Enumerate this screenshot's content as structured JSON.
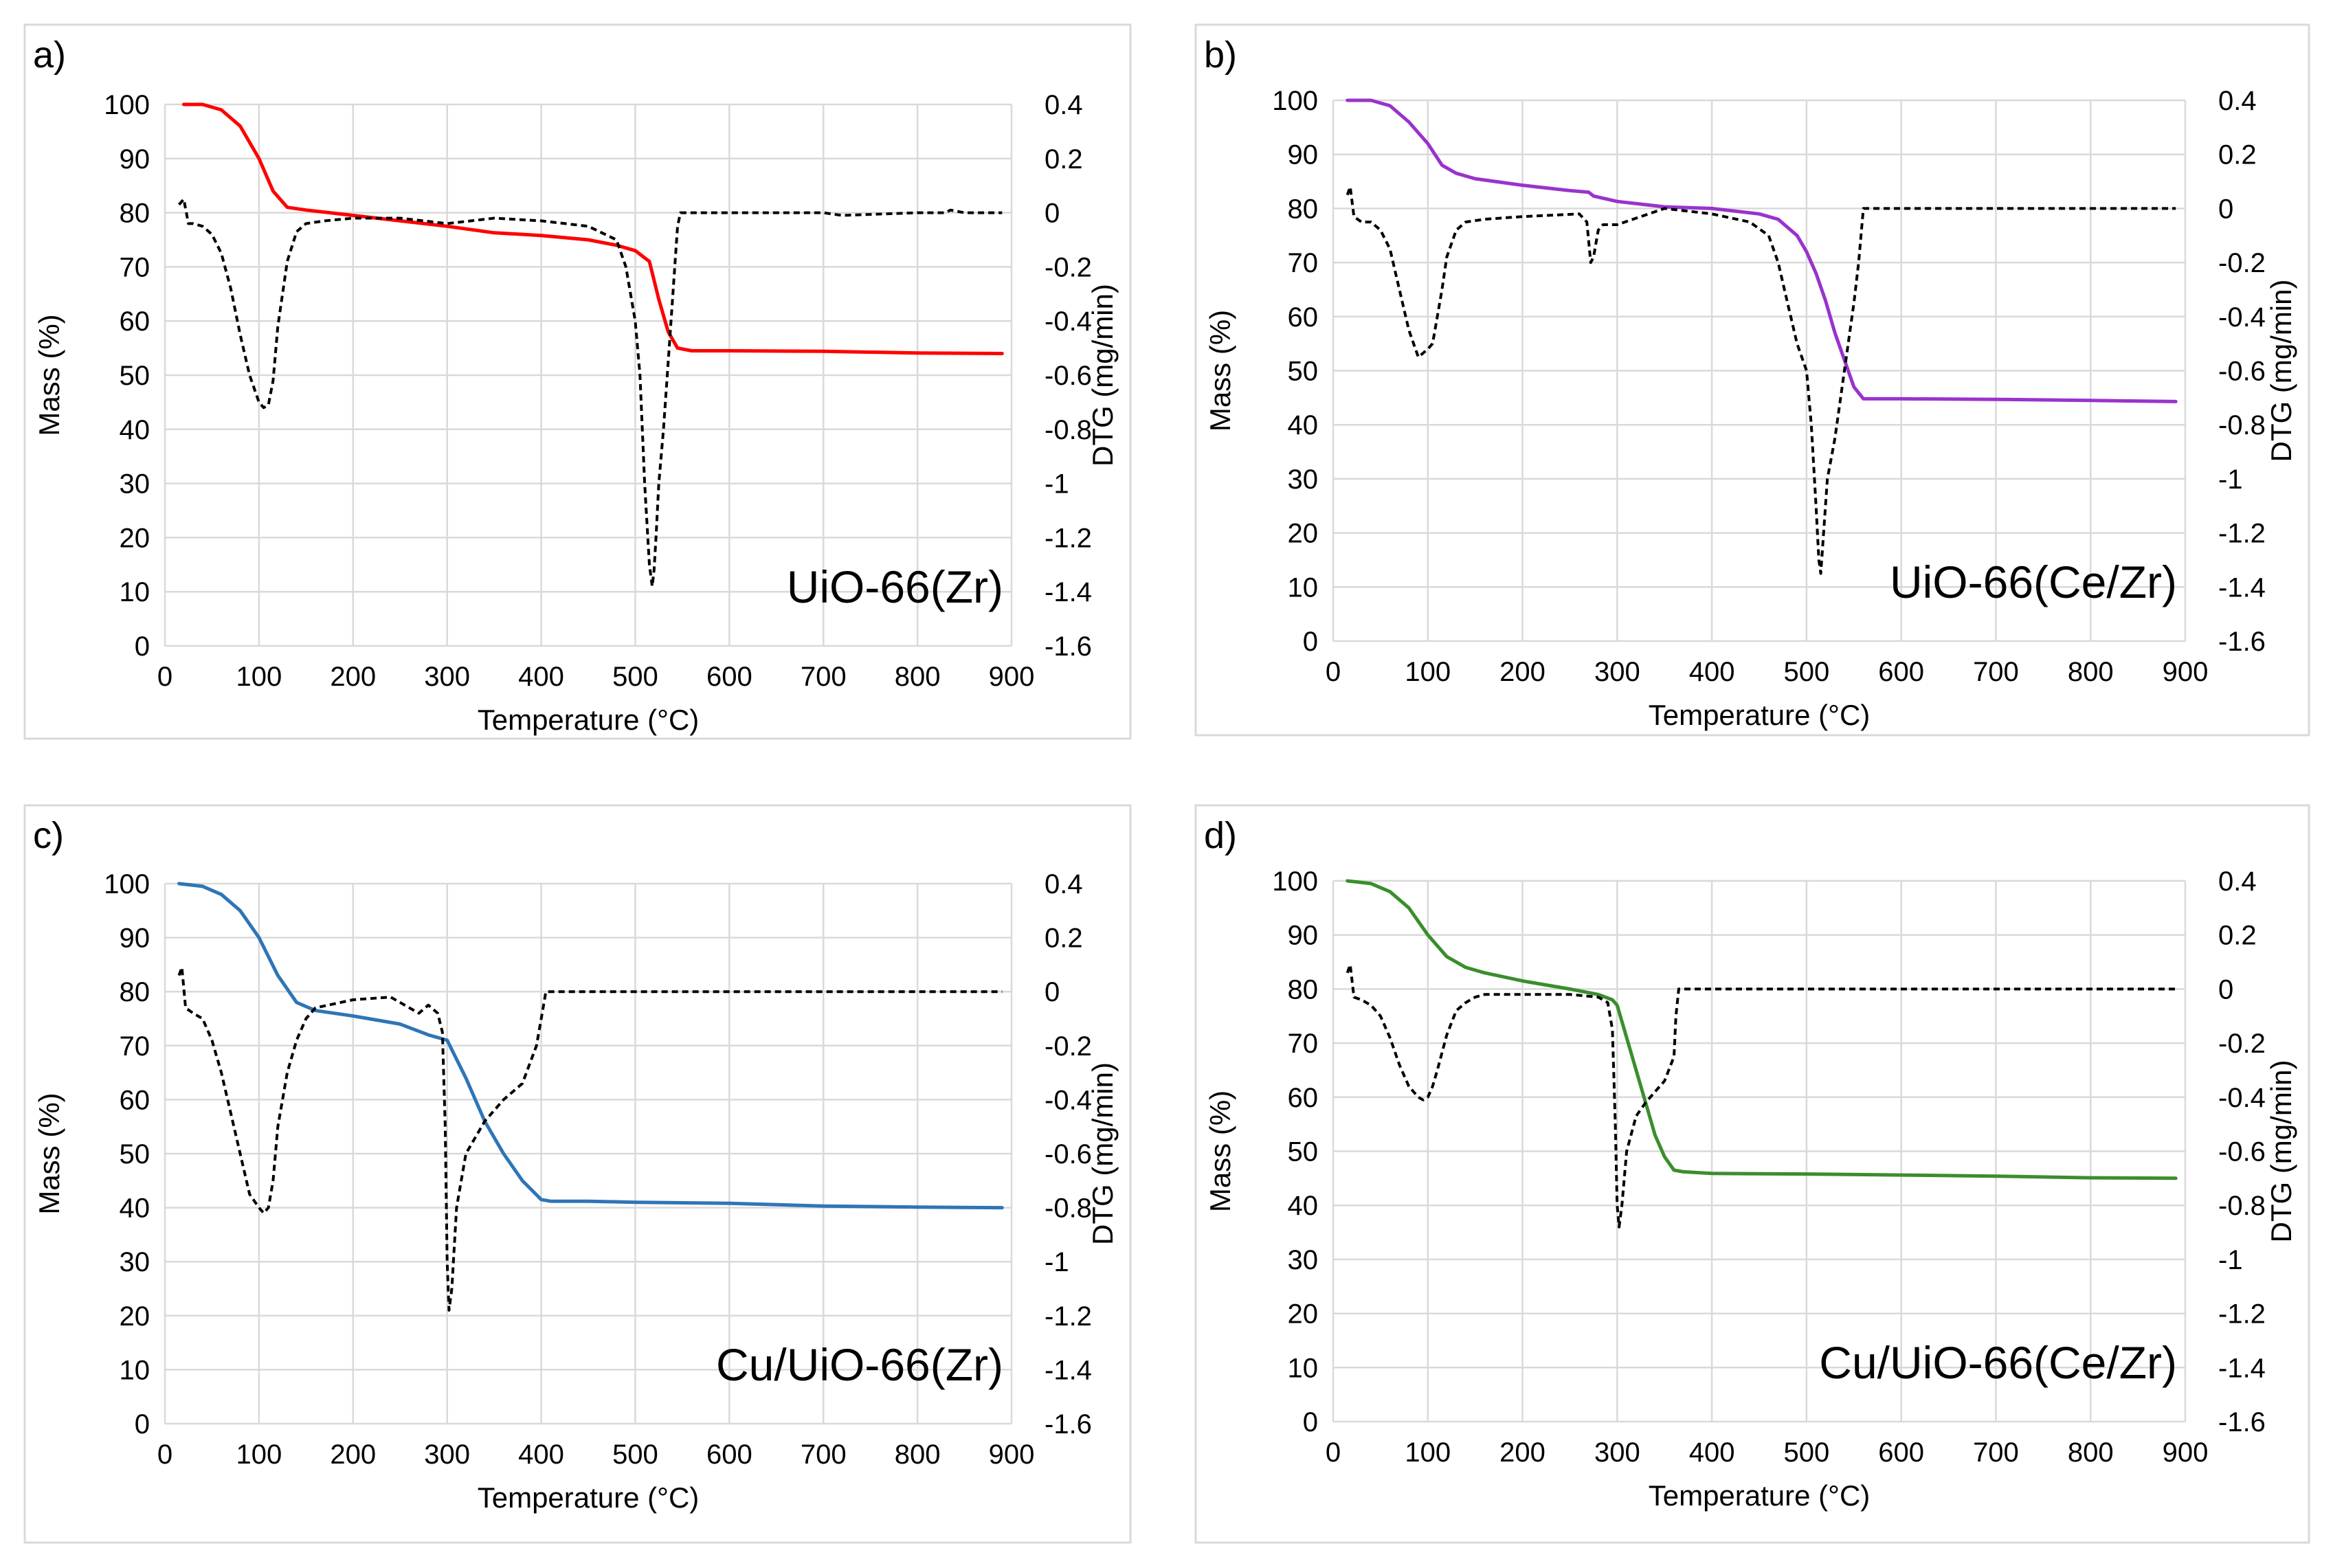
{
  "chart_data": [
    {
      "type": "line",
      "panel_label": "a)",
      "sample": "UiO-66(Zr)",
      "xlabel": "Temperature (°C)",
      "ylabel": "Mass (%)",
      "y2label": "DTG (mg/min)",
      "xlim": [
        0,
        900
      ],
      "ylim": [
        0,
        100
      ],
      "y2lim": [
        -1.6,
        0.4
      ],
      "xticks": [
        "0",
        "100",
        "200",
        "300",
        "400",
        "500",
        "600",
        "700",
        "800",
        "900"
      ],
      "yticks": [
        "0",
        "10",
        "20",
        "30",
        "40",
        "50",
        "60",
        "70",
        "80",
        "90",
        "100"
      ],
      "y2ticks": [
        "-1.6",
        "-1.4",
        "-1.2",
        "-1",
        "-0.8",
        "-0.6",
        "-0.4",
        "-0.2",
        "0",
        "0.2",
        "0.4"
      ],
      "colors": {
        "mass": "#ff0000",
        "dtg": "#000000"
      },
      "series": [
        {
          "name": "Mass",
          "axis": "left",
          "x": [
            20,
            40,
            60,
            80,
            100,
            115,
            130,
            150,
            200,
            250,
            300,
            350,
            400,
            450,
            480,
            500,
            515,
            525,
            535,
            545,
            560,
            600,
            700,
            800,
            890
          ],
          "y": [
            100,
            100,
            99,
            96,
            90,
            84,
            81,
            80.5,
            79.5,
            78.5,
            77.5,
            76.3,
            75.8,
            75,
            74,
            73,
            71,
            64,
            58,
            55,
            54.5,
            54.5,
            54.4,
            54.1,
            54
          ]
        },
        {
          "name": "DTG",
          "axis": "right",
          "x": [
            15,
            20,
            25,
            30,
            40,
            50,
            60,
            70,
            80,
            90,
            100,
            105,
            110,
            115,
            120,
            130,
            140,
            150,
            170,
            200,
            250,
            300,
            350,
            400,
            450,
            480,
            490,
            500,
            505,
            510,
            515,
            518,
            520,
            522,
            525,
            530,
            535,
            540,
            545,
            548,
            600,
            700,
            720,
            800,
            830,
            835,
            850,
            890
          ],
          "y": [
            0.03,
            0.05,
            -0.04,
            -0.04,
            -0.05,
            -0.08,
            -0.15,
            -0.28,
            -0.45,
            -0.6,
            -0.7,
            -0.72,
            -0.71,
            -0.62,
            -0.42,
            -0.18,
            -0.07,
            -0.04,
            -0.03,
            -0.02,
            -0.02,
            -0.04,
            -0.02,
            -0.03,
            -0.05,
            -0.1,
            -0.2,
            -0.4,
            -0.6,
            -1.0,
            -1.3,
            -1.38,
            -1.32,
            -1.2,
            -1.0,
            -0.8,
            -0.55,
            -0.3,
            -0.05,
            0,
            0,
            0,
            -0.01,
            0,
            0,
            0.01,
            0,
            0
          ]
        }
      ]
    },
    {
      "type": "line",
      "panel_label": "b)",
      "sample": "UiO-66(Ce/Zr)",
      "xlabel": "Temperature (°C)",
      "ylabel": "Mass (%)",
      "y2label": "DTG (mg/min)",
      "xlim": [
        0,
        900
      ],
      "ylim": [
        0,
        100
      ],
      "y2lim": [
        -1.6,
        0.4
      ],
      "xticks": [
        "0",
        "100",
        "200",
        "300",
        "400",
        "500",
        "600",
        "700",
        "800",
        "900"
      ],
      "yticks": [
        "0",
        "10",
        "20",
        "30",
        "40",
        "50",
        "60",
        "70",
        "80",
        "90",
        "100"
      ],
      "y2ticks": [
        "-1.6",
        "-1.4",
        "-1.2",
        "-1",
        "-0.8",
        "-0.6",
        "-0.4",
        "-0.2",
        "0",
        "0.2",
        "0.4"
      ],
      "colors": {
        "mass": "#9933cc",
        "dtg": "#000000"
      },
      "series": [
        {
          "name": "Mass",
          "axis": "left",
          "x": [
            15,
            40,
            60,
            80,
            100,
            115,
            130,
            150,
            200,
            250,
            270,
            275,
            300,
            350,
            400,
            450,
            470,
            490,
            500,
            510,
            520,
            530,
            540,
            550,
            560,
            600,
            700,
            800,
            890
          ],
          "y": [
            100,
            100,
            99,
            96,
            92,
            88,
            86.5,
            85.5,
            84.3,
            83.3,
            83,
            82.3,
            81.3,
            80.3,
            80,
            79,
            78,
            75,
            72,
            68,
            63,
            57,
            52,
            47,
            44.8,
            44.8,
            44.7,
            44.5,
            44.3
          ]
        },
        {
          "name": "DTG",
          "axis": "right",
          "x": [
            15,
            18,
            22,
            30,
            40,
            50,
            60,
            70,
            80,
            90,
            100,
            105,
            110,
            115,
            120,
            130,
            140,
            160,
            200,
            260,
            268,
            272,
            275,
            280,
            285,
            300,
            350,
            400,
            440,
            460,
            470,
            480,
            490,
            500,
            505,
            510,
            513,
            515,
            518,
            522,
            530,
            540,
            550,
            555,
            560,
            600,
            700,
            800,
            890
          ],
          "y": [
            0.05,
            0.08,
            -0.03,
            -0.05,
            -0.05,
            -0.08,
            -0.15,
            -0.3,
            -0.45,
            -0.55,
            -0.52,
            -0.5,
            -0.4,
            -0.3,
            -0.18,
            -0.08,
            -0.05,
            -0.04,
            -0.03,
            -0.02,
            -0.05,
            -0.2,
            -0.18,
            -0.08,
            -0.06,
            -0.06,
            0,
            -0.02,
            -0.05,
            -0.1,
            -0.2,
            -0.35,
            -0.5,
            -0.6,
            -0.8,
            -1.1,
            -1.3,
            -1.35,
            -1.2,
            -1.0,
            -0.85,
            -0.6,
            -0.35,
            -0.2,
            0,
            0,
            0,
            0,
            0
          ]
        }
      ]
    },
    {
      "type": "line",
      "panel_label": "c)",
      "sample": "Cu/UiO-66(Zr)",
      "xlabel": "Temperature (°C)",
      "ylabel": "Mass (%)",
      "y2label": "DTG (mg/min)",
      "xlim": [
        0,
        900
      ],
      "ylim": [
        0,
        100
      ],
      "y2lim": [
        -1.6,
        0.4
      ],
      "xticks": [
        "0",
        "100",
        "200",
        "300",
        "400",
        "500",
        "600",
        "700",
        "800",
        "900"
      ],
      "yticks": [
        "0",
        "10",
        "20",
        "30",
        "40",
        "50",
        "60",
        "70",
        "80",
        "90",
        "100"
      ],
      "y2ticks": [
        "-1.6",
        "-1.4",
        "-1.2",
        "-1",
        "-0.8",
        "-0.6",
        "-0.4",
        "-0.2",
        "0",
        "0.2",
        "0.4"
      ],
      "colors": {
        "mass": "#2e75b6",
        "dtg": "#000000"
      },
      "series": [
        {
          "name": "Mass",
          "axis": "left",
          "x": [
            15,
            40,
            60,
            80,
            100,
            120,
            140,
            160,
            200,
            250,
            280,
            300,
            320,
            340,
            360,
            380,
            400,
            410,
            450,
            500,
            600,
            700,
            800,
            890
          ],
          "y": [
            100,
            99.5,
            98,
            95,
            90,
            83,
            78,
            76.5,
            75.5,
            74,
            72,
            71,
            64,
            56,
            50,
            45,
            41.5,
            41.2,
            41.2,
            41,
            40.8,
            40.3,
            40.1,
            40
          ]
        },
        {
          "name": "DTG",
          "axis": "right",
          "x": [
            15,
            18,
            22,
            30,
            40,
            50,
            60,
            70,
            80,
            90,
            100,
            105,
            110,
            115,
            120,
            130,
            140,
            150,
            160,
            200,
            240,
            260,
            270,
            280,
            290,
            295,
            298,
            300,
            302,
            305,
            310,
            320,
            340,
            360,
            380,
            395,
            400,
            405,
            410,
            450,
            500,
            600,
            700,
            800,
            890
          ],
          "y": [
            0.06,
            0.09,
            -0.06,
            -0.08,
            -0.1,
            -0.18,
            -0.3,
            -0.45,
            -0.6,
            -0.75,
            -0.8,
            -0.82,
            -0.8,
            -0.7,
            -0.5,
            -0.3,
            -0.18,
            -0.1,
            -0.06,
            -0.03,
            -0.02,
            -0.06,
            -0.08,
            -0.05,
            -0.08,
            -0.15,
            -0.5,
            -1.0,
            -1.18,
            -1.1,
            -0.8,
            -0.6,
            -0.48,
            -0.4,
            -0.34,
            -0.2,
            -0.1,
            0,
            0,
            0,
            0,
            0,
            0,
            0,
            0
          ]
        }
      ]
    },
    {
      "type": "line",
      "panel_label": "d)",
      "sample": "Cu/UiO-66(Ce/Zr)",
      "xlabel": "Temperature (°C)",
      "ylabel": "Mass (%)",
      "y2label": "DTG (mg/min)",
      "xlim": [
        0,
        900
      ],
      "ylim": [
        0,
        100
      ],
      "y2lim": [
        -1.6,
        0.4
      ],
      "xticks": [
        "0",
        "100",
        "200",
        "300",
        "400",
        "500",
        "600",
        "700",
        "800",
        "900"
      ],
      "yticks": [
        "0",
        "10",
        "20",
        "30",
        "40",
        "50",
        "60",
        "70",
        "80",
        "90",
        "100"
      ],
      "y2ticks": [
        "-1.6",
        "-1.4",
        "-1.2",
        "-1",
        "-0.8",
        "-0.6",
        "-0.4",
        "-0.2",
        "0",
        "0.2",
        "0.4"
      ],
      "colors": {
        "mass": "#3a8e2c",
        "dtg": "#000000"
      },
      "series": [
        {
          "name": "Mass",
          "axis": "left",
          "x": [
            15,
            40,
            60,
            80,
            100,
            120,
            140,
            160,
            200,
            250,
            280,
            295,
            300,
            310,
            320,
            330,
            340,
            350,
            360,
            370,
            400,
            500,
            600,
            700,
            800,
            890
          ],
          "y": [
            100,
            99.5,
            98,
            95,
            90,
            86,
            84,
            83,
            81.5,
            80,
            79,
            78,
            77,
            71,
            65,
            59,
            53,
            49,
            46.5,
            46.2,
            45.9,
            45.8,
            45.6,
            45.4,
            45.1,
            45
          ]
        },
        {
          "name": "DTG",
          "axis": "right",
          "x": [
            15,
            18,
            22,
            30,
            40,
            50,
            60,
            70,
            80,
            90,
            95,
            100,
            105,
            110,
            120,
            130,
            140,
            150,
            160,
            200,
            250,
            280,
            290,
            295,
            298,
            300,
            302,
            305,
            310,
            320,
            330,
            340,
            350,
            360,
            362,
            365,
            370,
            400,
            500,
            600,
            700,
            800,
            890
          ],
          "y": [
            0.06,
            0.09,
            -0.03,
            -0.04,
            -0.06,
            -0.1,
            -0.18,
            -0.28,
            -0.36,
            -0.4,
            -0.41,
            -0.4,
            -0.36,
            -0.3,
            -0.17,
            -0.08,
            -0.05,
            -0.03,
            -0.02,
            -0.02,
            -0.02,
            -0.03,
            -0.05,
            -0.15,
            -0.5,
            -0.8,
            -0.88,
            -0.8,
            -0.6,
            -0.47,
            -0.42,
            -0.38,
            -0.34,
            -0.25,
            -0.1,
            0,
            0,
            0,
            0,
            0,
            0,
            0,
            0
          ]
        }
      ]
    }
  ]
}
